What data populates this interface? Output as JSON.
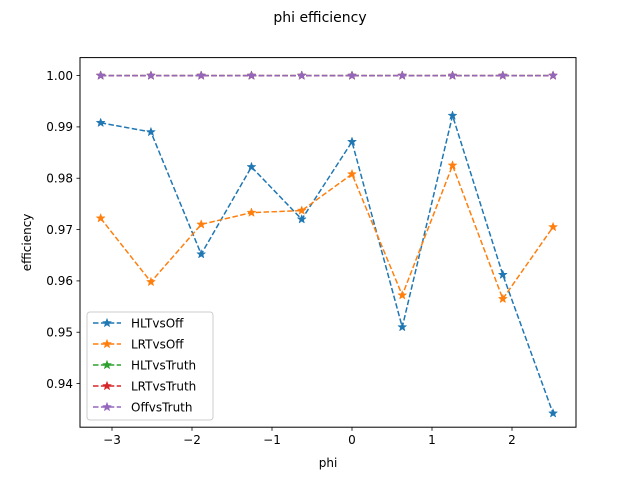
{
  "chart_data": {
    "type": "line",
    "title": "phi efficiency",
    "xlabel": "phi",
    "ylabel": "efficiency",
    "xlim": [
      -3.4,
      2.8
    ],
    "ylim": [
      0.9315,
      1.0035
    ],
    "xticks": [
      -3,
      -2,
      -1,
      0,
      1,
      2
    ],
    "xtick_labels": [
      "−3",
      "−2",
      "−1",
      "0",
      "1",
      "2"
    ],
    "yticks": [
      0.94,
      0.95,
      0.96,
      0.97,
      0.98,
      0.99,
      1.0
    ],
    "ytick_labels": [
      "0.94",
      "0.95",
      "0.96",
      "0.97",
      "0.98",
      "0.99",
      "1.00"
    ],
    "grid": false,
    "legend_position": "lower-left",
    "x": [
      -3.1416,
      -2.5133,
      -1.885,
      -1.2566,
      -0.6283,
      0.0,
      0.6283,
      1.2566,
      1.885,
      2.5133
    ],
    "series": [
      {
        "name": "HLTvsOff",
        "color": "#1f77b4",
        "marker": "star",
        "linestyle": "dashed",
        "values": [
          0.9908,
          0.989,
          0.9652,
          0.9822,
          0.972,
          0.9871,
          0.951,
          0.9922,
          0.9612,
          0.9342
        ]
      },
      {
        "name": "LRTvsOff",
        "color": "#ff7f0e",
        "marker": "star",
        "linestyle": "dashed",
        "values": [
          0.9722,
          0.9598,
          0.971,
          0.9733,
          0.9737,
          0.9808,
          0.9572,
          0.9825,
          0.9565,
          0.9705
        ]
      },
      {
        "name": "HLTvsTruth",
        "color": "#2ca02c",
        "marker": "star",
        "linestyle": "dashed",
        "values": [
          1.0,
          1.0,
          1.0,
          1.0,
          1.0,
          1.0,
          1.0,
          1.0,
          1.0,
          1.0
        ]
      },
      {
        "name": "LRTvsTruth",
        "color": "#d62728",
        "marker": "star",
        "linestyle": "dashed",
        "values": [
          1.0,
          1.0,
          1.0,
          1.0,
          1.0,
          1.0,
          1.0,
          1.0,
          1.0,
          1.0
        ]
      },
      {
        "name": "OffvsTruth",
        "color": "#9467bd",
        "marker": "star",
        "linestyle": "dashed",
        "values": [
          1.0,
          1.0,
          1.0,
          1.0,
          1.0,
          1.0,
          1.0,
          1.0,
          1.0,
          1.0
        ]
      }
    ]
  }
}
